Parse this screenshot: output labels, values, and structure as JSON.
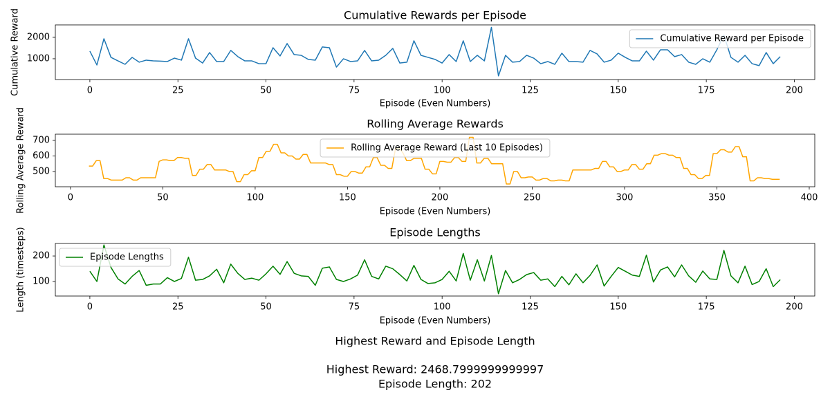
{
  "chart_data": [
    {
      "type": "line",
      "title": "Cumulative Rewards per Episode",
      "xlabel": "Episode (Even Numbers)",
      "ylabel": "Cumulative Reward",
      "x": [
        0,
        2,
        4,
        6,
        8,
        10,
        12,
        14,
        16,
        18,
        20,
        22,
        24,
        26,
        28,
        30,
        32,
        34,
        36,
        38,
        40,
        42,
        44,
        46,
        48,
        50,
        52,
        54,
        56,
        58,
        60,
        62,
        64,
        66,
        68,
        70,
        72,
        74,
        76,
        78,
        80,
        82,
        84,
        86,
        88,
        90,
        92,
        94,
        96,
        98,
        100,
        102,
        104,
        106,
        108,
        110,
        112,
        114,
        116,
        118,
        120,
        122,
        124,
        126,
        128,
        130,
        132,
        134,
        136,
        138,
        140,
        142,
        144,
        146,
        148,
        150,
        152,
        154,
        156,
        158,
        160,
        162,
        164,
        166,
        168,
        170,
        172,
        174,
        176,
        178,
        180,
        182,
        184,
        186,
        188,
        190,
        192,
        194,
        196
      ],
      "series": [
        {
          "name": "Cumulative Reward per Episode",
          "color": "#1f77b4",
          "values": [
            1355,
            710,
            1935,
            1065,
            900,
            740,
            1065,
            840,
            935,
            900,
            890,
            870,
            1030,
            935,
            1935,
            1030,
            800,
            1290,
            870,
            870,
            1390,
            1100,
            900,
            900,
            770,
            770,
            1515,
            1130,
            1710,
            1195,
            1160,
            970,
            935,
            1550,
            1515,
            610,
            1000,
            870,
            900,
            1390,
            900,
            935,
            1160,
            1485,
            800,
            840,
            1840,
            1160,
            1065,
            970,
            800,
            1195,
            870,
            1840,
            870,
            1160,
            900,
            2468.8,
            200,
            1160,
            840,
            870,
            1160,
            1030,
            770,
            870,
            740,
            1260,
            870,
            870,
            840,
            1390,
            1225,
            840,
            935,
            1260,
            1065,
            900,
            900,
            1355,
            935,
            1420,
            1420,
            1100,
            1195,
            840,
            740,
            1000,
            840,
            1420,
            2100,
            1065,
            840,
            1160,
            770,
            680,
            1290,
            770,
            1100
          ]
        }
      ],
      "xlim": [
        -9.8,
        205.8
      ],
      "ylim": [
        30,
        2580
      ],
      "xticks": [
        0,
        25,
        50,
        75,
        100,
        125,
        150,
        175,
        200
      ],
      "yticks": [
        1000,
        2000
      ],
      "grid": false,
      "legend": "upper right"
    },
    {
      "type": "line",
      "title": "Rolling Average Rewards",
      "xlabel": "Episode (Even Numbers)",
      "ylabel": "Rolling Average Reward",
      "x": [
        10,
        12,
        14,
        16,
        18,
        20,
        22,
        24,
        26,
        28,
        30,
        32,
        34,
        36,
        38,
        40,
        42,
        44,
        46,
        48,
        50,
        52,
        54,
        56,
        58,
        60,
        62,
        64,
        66,
        68,
        70,
        72,
        74,
        76,
        78,
        80,
        82,
        84,
        86,
        88,
        90,
        92,
        94,
        96,
        98,
        100,
        102,
        104,
        106,
        108,
        110,
        112,
        114,
        116,
        118,
        120,
        122,
        124,
        126,
        128,
        130,
        132,
        134,
        136,
        138,
        140,
        142,
        144,
        146,
        148,
        150,
        152,
        154,
        156,
        158,
        160,
        162,
        164,
        166,
        168,
        170,
        172,
        174,
        176,
        178,
        180,
        182,
        184,
        186,
        188,
        190,
        192,
        194,
        196,
        198,
        200,
        202,
        204,
        206,
        208,
        210,
        212,
        214,
        216,
        218,
        220,
        222,
        224,
        226,
        228,
        230,
        232,
        234,
        236,
        238,
        240,
        242,
        244,
        246,
        248,
        250,
        252,
        254,
        256,
        258,
        260,
        262,
        264,
        266,
        268,
        270,
        272,
        274,
        276,
        278,
        280,
        282,
        284,
        286,
        288,
        290,
        292,
        294,
        296,
        298,
        300,
        302,
        304,
        306,
        308,
        310,
        312,
        314,
        316,
        318,
        320,
        322,
        324,
        326,
        328,
        330,
        332,
        334,
        336,
        338,
        340,
        342,
        344,
        346,
        348,
        350,
        352,
        354,
        356,
        358,
        360,
        362,
        364,
        366,
        368,
        370,
        372,
        374,
        376,
        378,
        380,
        382,
        384
      ],
      "series": [
        {
          "name": "Rolling Average Reward (Last 10 Episodes)",
          "color": "#ffa500",
          "values": [
            535,
            535,
            570,
            570,
            455,
            455,
            445,
            445,
            445,
            445,
            460,
            460,
            445,
            445,
            460,
            460,
            460,
            460,
            460,
            565,
            575,
            575,
            570,
            570,
            590,
            590,
            585,
            585,
            475,
            475,
            515,
            515,
            545,
            545,
            510,
            510,
            510,
            510,
            500,
            500,
            435,
            435,
            480,
            480,
            505,
            505,
            590,
            590,
            630,
            630,
            675,
            675,
            620,
            620,
            600,
            600,
            580,
            580,
            610,
            610,
            555,
            555,
            555,
            555,
            555,
            545,
            545,
            480,
            480,
            470,
            470,
            500,
            500,
            490,
            490,
            530,
            530,
            590,
            590,
            540,
            540,
            520,
            520,
            650,
            650,
            620,
            570,
            570,
            585,
            585,
            585,
            515,
            515,
            485,
            485,
            565,
            565,
            560,
            560,
            590,
            590,
            565,
            565,
            720,
            720,
            555,
            555,
            585,
            585,
            550,
            550,
            550,
            550,
            420,
            420,
            500,
            500,
            460,
            460,
            465,
            465,
            445,
            445,
            455,
            455,
            440,
            440,
            445,
            445,
            440,
            440,
            510,
            510,
            510,
            510,
            510,
            510,
            520,
            520,
            565,
            565,
            530,
            530,
            500,
            500,
            510,
            510,
            545,
            545,
            515,
            515,
            550,
            550,
            605,
            605,
            615,
            615,
            605,
            605,
            590,
            590,
            520,
            520,
            480,
            480,
            455,
            455,
            475,
            475,
            615,
            615,
            640,
            640,
            625,
            625,
            660,
            660,
            595,
            595,
            440,
            440,
            460,
            460,
            455,
            455,
            450,
            450,
            450
          ]
        }
      ],
      "xlim": [
        -8.2,
        403
      ],
      "ylim": [
        402,
        740
      ],
      "xticks": [
        0,
        50,
        100,
        150,
        200,
        250,
        300,
        350,
        400
      ],
      "yticks": [
        500,
        600,
        700
      ],
      "grid": false,
      "legend": "upper center"
    },
    {
      "type": "line",
      "title": "Episode Lengths",
      "xlabel": "Episode (Even Numbers)",
      "ylabel": "Length (timesteps)",
      "x": [
        0,
        2,
        4,
        6,
        8,
        10,
        12,
        14,
        16,
        18,
        20,
        22,
        24,
        26,
        28,
        30,
        32,
        34,
        36,
        38,
        40,
        42,
        44,
        46,
        48,
        50,
        52,
        54,
        56,
        58,
        60,
        62,
        64,
        66,
        68,
        70,
        72,
        74,
        76,
        78,
        80,
        82,
        84,
        86,
        88,
        90,
        92,
        94,
        96,
        98,
        100,
        102,
        104,
        106,
        108,
        110,
        112,
        114,
        116,
        118,
        120,
        122,
        124,
        126,
        128,
        130,
        132,
        134,
        136,
        138,
        140,
        142,
        144,
        146,
        148,
        150,
        152,
        154,
        156,
        158,
        160,
        162,
        164,
        166,
        168,
        170,
        172,
        174,
        176,
        178,
        180,
        182,
        184,
        186,
        188,
        190,
        192,
        194,
        196
      ],
      "series": [
        {
          "name": "Episode Lengths",
          "color": "#008000",
          "values": [
            140,
            100,
            243,
            155,
            110,
            90,
            120,
            143,
            85,
            90,
            90,
            115,
            100,
            112,
            195,
            105,
            108,
            122,
            148,
            95,
            168,
            132,
            108,
            113,
            105,
            130,
            160,
            128,
            178,
            132,
            122,
            120,
            85,
            152,
            157,
            108,
            100,
            110,
            125,
            185,
            120,
            110,
            160,
            150,
            127,
            102,
            163,
            108,
            92,
            95,
            108,
            140,
            102,
            210,
            105,
            185,
            102,
            202,
            52,
            143,
            95,
            108,
            127,
            135,
            105,
            110,
            80,
            120,
            87,
            130,
            95,
            124,
            165,
            82,
            120,
            155,
            140,
            125,
            120,
            203,
            98,
            145,
            157,
            118,
            165,
            122,
            97,
            141,
            110,
            108,
            222,
            122,
            95,
            160,
            88,
            100,
            150,
            80,
            107
          ]
        }
      ],
      "xlim": [
        -9.8,
        205.8
      ],
      "ylim": [
        43,
        249
      ],
      "xticks": [
        0,
        25,
        50,
        75,
        100,
        125,
        150,
        175,
        200
      ],
      "yticks": [
        100,
        200
      ],
      "grid": false,
      "legend": "upper left"
    }
  ],
  "summary": {
    "title": "Highest Reward and Episode Length",
    "lines": [
      "Highest Reward: 2468.7999999999997",
      "Episode Length: 202"
    ]
  }
}
